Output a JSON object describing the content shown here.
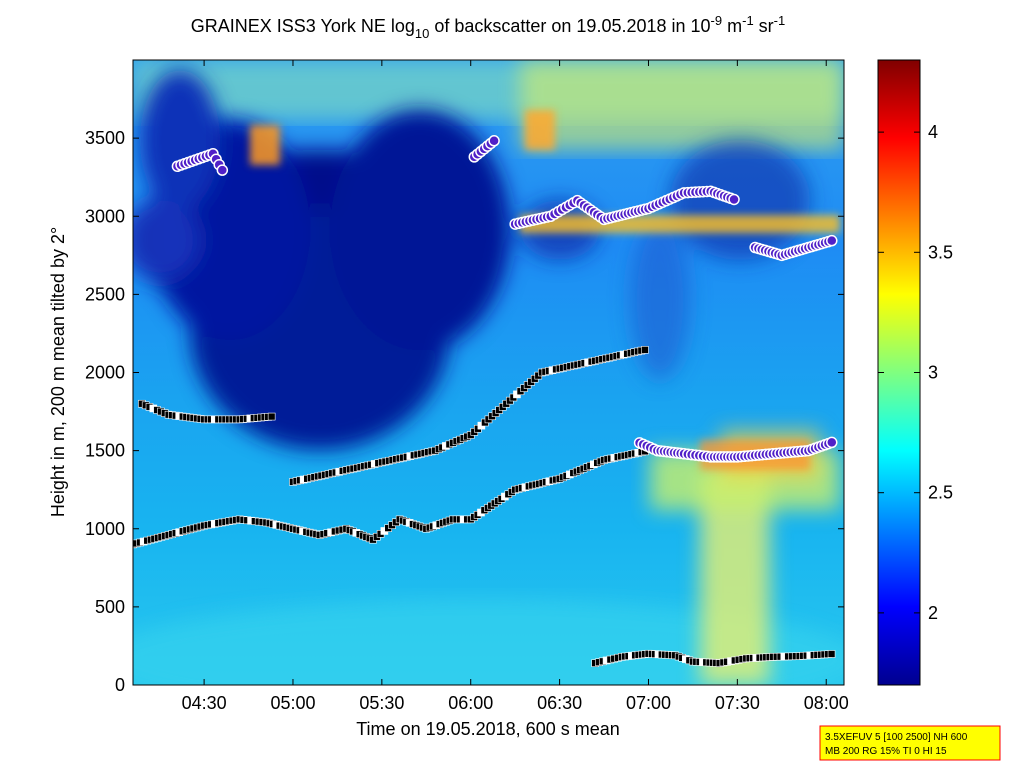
{
  "chart_data": {
    "type": "heatmap",
    "title": {
      "prefix": "GRAINEX ISS3 York NE log",
      "log_sub": "10",
      "mid": " of backscatter on 19.05.2018 in 10",
      "exp1": "-9",
      "unit1": " m",
      "exp2": "-1",
      "unit2": " sr",
      "exp3": "-1"
    },
    "xlabel": "Time on 19.05.2018, 600 s mean",
    "ylabel": "Height in m, 200 m mean tilted by 2°",
    "x_range_hours": [
      4.1,
      8.1
    ],
    "x_ticks": [
      "04:30",
      "05:00",
      "05:30",
      "06:00",
      "06:30",
      "07:00",
      "07:30",
      "08:00"
    ],
    "y_ticks": [
      "0",
      "500",
      "1000",
      "1500",
      "2000",
      "2500",
      "3000",
      "3500"
    ],
    "ylim": [
      0,
      4000
    ],
    "colorbar": {
      "range": [
        1.7,
        4.3
      ],
      "ticks": [
        "2",
        "2.5",
        "3",
        "3.5",
        "4"
      ],
      "colormap": "jet"
    },
    "info_box": {
      "line1": "3.5XEFUV 5 [100 2500] NH 600",
      "line2": "MB 200 RG 15% TI 0 HI 15",
      "background": "#ffff00",
      "border": "#ff0000"
    },
    "layers": [
      {
        "name": "lowest",
        "points": [
          [
            6.7,
            140
          ],
          [
            6.85,
            180
          ],
          [
            7.0,
            200
          ],
          [
            7.15,
            190
          ],
          [
            7.25,
            150
          ],
          [
            7.4,
            140
          ],
          [
            7.55,
            170
          ],
          [
            7.7,
            180
          ],
          [
            7.85,
            185
          ],
          [
            8.05,
            200
          ]
        ]
      },
      {
        "name": "boundary",
        "points": [
          [
            4.1,
            900
          ],
          [
            4.3,
            960
          ],
          [
            4.5,
            1020
          ],
          [
            4.7,
            1060
          ],
          [
            4.85,
            1040
          ],
          [
            5.0,
            1000
          ],
          [
            5.15,
            960
          ],
          [
            5.3,
            1000
          ],
          [
            5.45,
            930
          ],
          [
            5.6,
            1060
          ],
          [
            5.75,
            1000
          ],
          [
            5.9,
            1060
          ],
          [
            6.0,
            1060
          ],
          [
            6.25,
            1250
          ],
          [
            6.5,
            1320
          ],
          [
            6.75,
            1440
          ],
          [
            7.0,
            1500
          ]
        ]
      },
      {
        "name": "residual",
        "points": [
          [
            4.15,
            1800
          ],
          [
            4.3,
            1730
          ],
          [
            4.5,
            1700
          ],
          [
            4.7,
            1700
          ],
          [
            4.9,
            1720
          ],
          [
            5.0,
            1300
          ],
          [
            5.2,
            1350
          ],
          [
            5.4,
            1400
          ],
          [
            5.6,
            1450
          ],
          [
            5.8,
            1500
          ],
          [
            6.0,
            1600
          ],
          [
            6.2,
            1800
          ],
          [
            6.4,
            2000
          ],
          [
            6.6,
            2050
          ],
          [
            6.8,
            2100
          ],
          [
            7.0,
            2150
          ]
        ]
      },
      {
        "name": "cloud-base-low",
        "points": [
          [
            6.95,
            1550
          ],
          [
            7.05,
            1500
          ],
          [
            7.2,
            1480
          ],
          [
            7.35,
            1460
          ],
          [
            7.5,
            1460
          ],
          [
            7.7,
            1480
          ],
          [
            7.9,
            1500
          ],
          [
            8.05,
            1560
          ]
        ]
      },
      {
        "name": "cloud-base-high",
        "points": [
          [
            4.35,
            3320
          ],
          [
            4.55,
            3400
          ],
          [
            4.62,
            3260
          ],
          [
            6.02,
            3380
          ],
          [
            6.15,
            3500
          ],
          [
            6.25,
            2950
          ],
          [
            6.45,
            3000
          ],
          [
            6.6,
            3100
          ],
          [
            6.75,
            2980
          ],
          [
            7.0,
            3050
          ],
          [
            7.2,
            3150
          ],
          [
            7.35,
            3160
          ],
          [
            7.5,
            3100
          ],
          [
            7.6,
            2800
          ],
          [
            7.75,
            2750
          ],
          [
            7.9,
            2800
          ],
          [
            8.05,
            2850
          ]
        ]
      }
    ]
  }
}
